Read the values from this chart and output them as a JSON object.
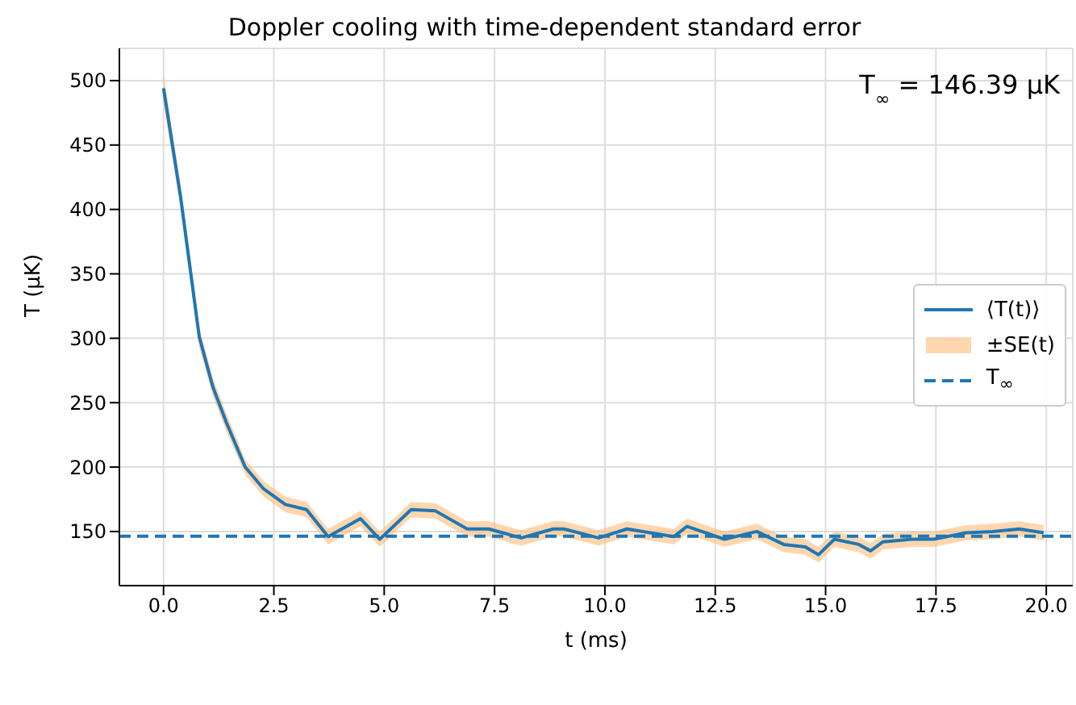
{
  "chart_data": {
    "type": "line",
    "title": "Doppler cooling with time-dependent standard error",
    "xlabel": "t (ms)",
    "ylabel": "T (μK)",
    "annotations": [
      "T$_{∞}$ = 146.39 μK",
      "±SE(t)"
    ],
    "x": [
      0,
      0.39,
      0.81,
      1.12,
      1.42,
      1.85,
      2.27,
      2.76,
      3.24,
      3.73,
      4.46,
      4.9,
      5.61,
      6.16,
      6.88,
      7.37,
      8.1,
      8.83,
      9.07,
      9.86,
      10.5,
      11.56,
      11.86,
      12.71,
      13.44,
      14.05,
      14.54,
      14.84,
      15.2,
      15.75,
      16.02,
      16.3,
      16.96,
      17.45,
      18.18,
      18.79,
      19.39,
      19.94
    ],
    "series": [
      {
        "name": "⟨T(t)⟩",
        "color": "#1f77b4",
        "values": [
          494,
          409,
          301,
          262,
          235,
          200,
          183,
          171,
          167,
          146,
          160,
          144,
          167,
          166,
          152,
          152,
          145,
          152,
          152,
          145,
          152,
          146,
          154,
          144,
          150,
          140,
          138,
          132,
          144,
          140,
          135,
          142,
          144,
          144,
          149,
          150,
          152,
          149
        ],
        "lower": [
          482,
          400,
          293,
          255,
          228,
          194,
          177,
          165,
          161,
          140,
          154,
          138,
          161,
          160,
          146,
          146,
          139,
          146,
          146,
          139,
          146,
          140,
          148,
          138,
          144,
          134,
          132,
          126,
          138,
          134,
          129,
          136,
          138,
          138,
          143,
          144,
          146,
          143
        ],
        "upper": [
          506,
          418,
          309,
          269,
          242,
          206,
          189,
          177,
          173,
          152,
          166,
          150,
          173,
          172,
          158,
          158,
          151,
          158,
          158,
          151,
          158,
          152,
          160,
          150,
          156,
          146,
          144,
          138,
          150,
          146,
          141,
          148,
          150,
          150,
          155,
          156,
          158,
          155
        ]
      }
    ],
    "ref_lines": [
      {
        "axis": "y",
        "value": 146.39,
        "label": "T$_{∞}$",
        "color": "#1f77b4",
        "line_style": "dashed"
      }
    ],
    "xlim": [
      -1,
      20.6
    ],
    "xticks": [
      {
        "value": 0,
        "label": "0.0"
      },
      {
        "value": 2.5,
        "label": "2.5"
      },
      {
        "value": 5,
        "label": "5.0"
      },
      {
        "value": 7.5,
        "label": "7.5"
      },
      {
        "value": 10,
        "label": "10.0"
      },
      {
        "value": 12.5,
        "label": "12.5"
      },
      {
        "value": 15,
        "label": "15.0"
      },
      {
        "value": 17.5,
        "label": "17.5"
      },
      {
        "value": 20,
        "label": "20.0"
      }
    ],
    "ylim": [
      108,
      525
    ],
    "yticks": [
      150,
      200,
      250,
      300,
      350,
      400,
      450,
      500
    ],
    "grid": true,
    "legend": "right",
    "marker": "none",
    "line_style": "solid"
  }
}
